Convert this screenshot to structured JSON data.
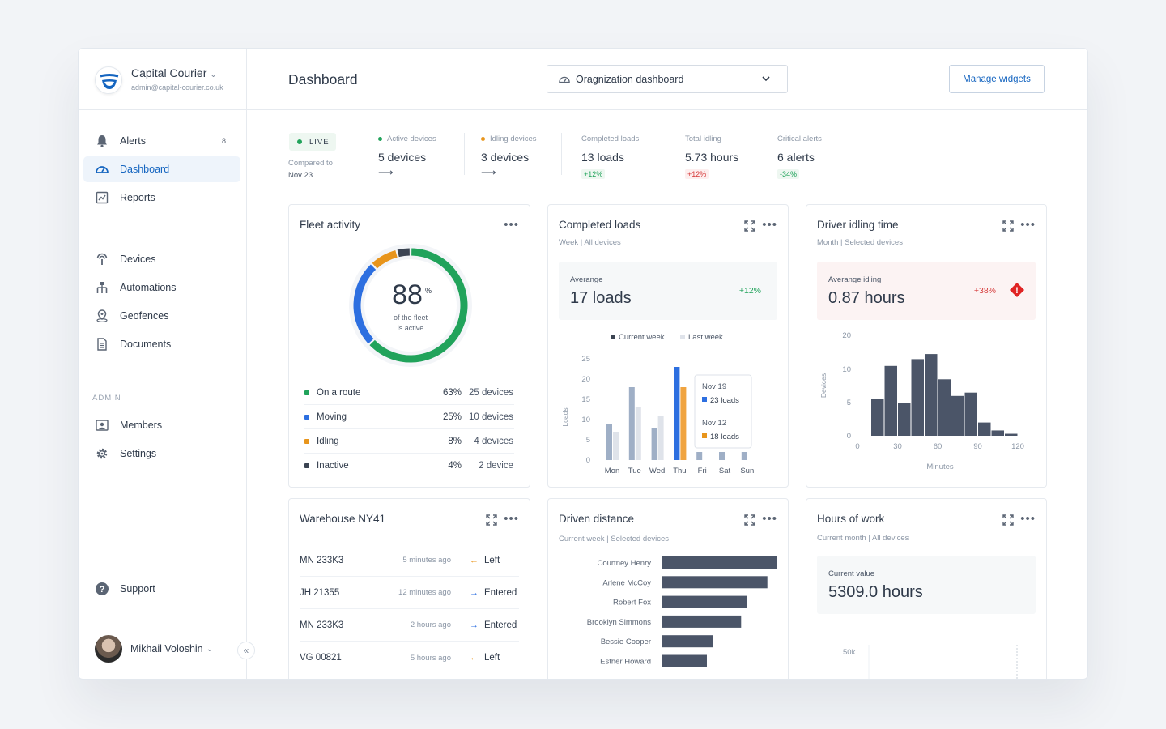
{
  "brand": {
    "name": "Capital Courier",
    "email": "admin@capital-courier.co.uk"
  },
  "nav": {
    "alerts": {
      "label": "Alerts",
      "badge": "8"
    },
    "dashboard": {
      "label": "Dashboard"
    },
    "reports": {
      "label": "Reports"
    },
    "devices": {
      "label": "Devices"
    },
    "automations": {
      "label": "Automations"
    },
    "geofences": {
      "label": "Geofences"
    },
    "documents": {
      "label": "Documents"
    },
    "admin_label": "ADMIN",
    "members": {
      "label": "Members"
    },
    "settings": {
      "label": "Settings"
    },
    "support": {
      "label": "Support"
    }
  },
  "user": {
    "name": "Mikhail Voloshin"
  },
  "header": {
    "title": "Dashboard",
    "dashboard_select": "Oragnization dashboard",
    "manage_widgets": "Manage widgets"
  },
  "stats": {
    "live": "LIVE",
    "compared_label": "Compared to",
    "compared_date": "Nov 23",
    "items": [
      {
        "label": "Active devices",
        "value": "5 devices",
        "dot_color": "#21a35b"
      },
      {
        "label": "Idling devices",
        "value": "3 devices",
        "dot_color": "#e8951c"
      },
      {
        "label": "Completed loads",
        "value": "13 loads",
        "delta": "+12%"
      },
      {
        "label": "Total idling",
        "value": "5.73 hours",
        "delta": "+12%"
      },
      {
        "label": "Critical alerts",
        "value": "6 alerts",
        "delta": "-34%"
      }
    ]
  },
  "colors": {
    "accent": "#1565c0",
    "green": "#21a35b",
    "orange": "#e8951c",
    "red": "#d63b3b",
    "blue": "#2d6fe0",
    "slate": "#4b5568"
  },
  "fleet": {
    "title": "Fleet activity",
    "percent": "88",
    "percent_sign": "%",
    "caption_1": "of the fleet",
    "caption_2": "is active",
    "rows": [
      {
        "label": "On a route",
        "pct": "63%",
        "devices": "25 devices",
        "color": "#21a35b"
      },
      {
        "label": "Moving",
        "pct": "25%",
        "devices": "10 devices",
        "color": "#2d6fe0"
      },
      {
        "label": "Idling",
        "pct": "8%",
        "devices": "4 devices",
        "color": "#e8951c"
      },
      {
        "label": "Inactive",
        "pct": "4%",
        "devices": "2 device",
        "color": "#3b4452"
      }
    ]
  },
  "completed": {
    "title": "Completed loads",
    "subtitle": "Week | All devices",
    "metric_label": "Averange",
    "metric_value": "17 loads",
    "metric_delta": "+12%",
    "tooltip": {
      "date1": "Nov 19",
      "val1": "23 loads",
      "date2": "Nov 12",
      "val2": "18 loads"
    }
  },
  "idling": {
    "title": "Driver idling time",
    "subtitle": "Month | Selected devices",
    "metric_label": "Averange idling",
    "metric_value": "0.87 hours",
    "metric_delta": "+38%",
    "alert_icon": "!"
  },
  "warehouse": {
    "title": "Warehouse NY41",
    "rows": [
      {
        "id": "MN 233K3",
        "time": "5 minutes ago",
        "action": "Left",
        "arrow": "←",
        "arrow_color": "#e8951c"
      },
      {
        "id": "JH 21355",
        "time": "12 minutes ago",
        "action": "Entered",
        "arrow": "→",
        "arrow_color": "#2d6fe0"
      },
      {
        "id": "MN 233K3",
        "time": "2 hours ago",
        "action": "Entered",
        "arrow": "→",
        "arrow_color": "#2d6fe0"
      },
      {
        "id": "VG 00821",
        "time": "5 hours ago",
        "action": "Left",
        "arrow": "←",
        "arrow_color": "#e8951c"
      }
    ]
  },
  "distance": {
    "title": "Driven distance",
    "subtitle": "Current week | Selected devices"
  },
  "hours": {
    "title": "Hours of work",
    "subtitle": "Current month | All devices",
    "metric_label": "Current value",
    "metric_value": "5309.0 hours"
  },
  "chart_data": [
    {
      "type": "bar",
      "title": "Completed loads",
      "categories": [
        "Mon",
        "Tue",
        "Wed",
        "Thu",
        "Fri",
        "Sat",
        "Sun"
      ],
      "series": [
        {
          "name": "Current week",
          "values": [
            9,
            18,
            8,
            23,
            2,
            2,
            2
          ]
        },
        {
          "name": "Last week",
          "values": [
            7,
            13,
            11,
            18,
            0,
            0,
            0
          ]
        }
      ],
      "ylabel": "Loads",
      "ylim": [
        0,
        25
      ],
      "yticks": [
        "0",
        "5",
        "10",
        "15",
        "20",
        "25"
      ],
      "legend": "top"
    },
    {
      "type": "bar",
      "title": "Driver idling time",
      "x": [
        5,
        10,
        15,
        20,
        25,
        30,
        35,
        40,
        45,
        50,
        55,
        60,
        65,
        70,
        75,
        80,
        85,
        90,
        95,
        100,
        105,
        110,
        115,
        120
      ],
      "values": [
        0,
        0,
        5.5,
        5.5,
        11,
        11,
        5,
        5,
        13,
        13,
        14.5,
        14.5,
        8.5,
        8.5,
        6,
        6,
        6.5,
        6.5,
        2,
        2,
        0.8,
        0.8,
        0.3,
        0.3
      ],
      "xlabel": "Minutes",
      "ylabel": "Devices",
      "xticks": [
        "0",
        "30",
        "60",
        "90",
        "120"
      ],
      "yticks": [
        "0",
        "5",
        "10",
        "20"
      ]
    },
    {
      "type": "bar",
      "title": "Driven distance",
      "orientation": "horizontal",
      "categories": [
        "Courtney Henry",
        "Arlene McCoy",
        "Robert Fox",
        "Brooklyn Simmons",
        "Bessie Cooper",
        "Esther Howard"
      ],
      "values": [
        100,
        92,
        74,
        69,
        44,
        39
      ]
    },
    {
      "type": "line",
      "title": "Hours of work",
      "yticks": [
        "50k"
      ]
    }
  ]
}
